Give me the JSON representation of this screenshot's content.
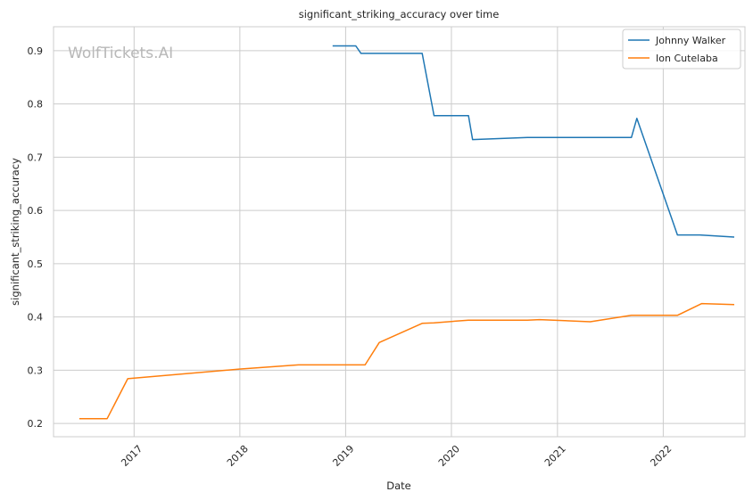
{
  "chart_data": {
    "type": "line",
    "title": "significant_striking_accuracy over time",
    "xlabel": "Date",
    "ylabel": "significant_striking_accuracy",
    "watermark": "WolfTickets.AI",
    "x_ticks": [
      "2017",
      "2018",
      "2019",
      "2020",
      "2021",
      "2022"
    ],
    "y_ticks": [
      "0.2",
      "0.3",
      "0.4",
      "0.5",
      "0.6",
      "0.7",
      "0.8",
      "0.9"
    ],
    "xlim": [
      "2016-03-29",
      "2022-10-10"
    ],
    "ylim": [
      0.175,
      0.945
    ],
    "grid": true,
    "legend_position": "top-right",
    "series": [
      {
        "name": "Johnny Walker",
        "color": "#1f77b4",
        "points": [
          [
            "2018-11-17",
            0.909
          ],
          [
            "2019-02-05",
            0.909
          ],
          [
            "2019-02-23",
            0.895
          ],
          [
            "2019-09-22",
            0.895
          ],
          [
            "2019-11-02",
            0.778
          ],
          [
            "2020-02-29",
            0.778
          ],
          [
            "2020-03-14",
            0.733
          ],
          [
            "2020-09-19",
            0.737
          ],
          [
            "2021-09-13",
            0.737
          ],
          [
            "2021-10-02",
            0.773
          ],
          [
            "2022-02-19",
            0.554
          ],
          [
            "2022-05-07",
            0.554
          ],
          [
            "2022-09-03",
            0.55
          ]
        ]
      },
      {
        "name": "Ion Cutelaba",
        "color": "#ff7f0e",
        "points": [
          [
            "2016-06-26",
            0.209
          ],
          [
            "2016-09-30",
            0.209
          ],
          [
            "2016-12-10",
            0.284
          ],
          [
            "2017-12-30",
            0.302
          ],
          [
            "2018-07-22",
            0.31
          ],
          [
            "2019-03-09",
            0.31
          ],
          [
            "2019-04-27",
            0.352
          ],
          [
            "2019-09-22",
            0.388
          ],
          [
            "2019-11-02",
            0.389
          ],
          [
            "2020-02-29",
            0.394
          ],
          [
            "2020-09-19",
            0.394
          ],
          [
            "2020-10-31",
            0.395
          ],
          [
            "2021-04-24",
            0.391
          ],
          [
            "2021-09-13",
            0.403
          ],
          [
            "2022-02-19",
            0.403
          ],
          [
            "2022-05-14",
            0.425
          ],
          [
            "2022-09-03",
            0.423
          ]
        ]
      }
    ]
  }
}
